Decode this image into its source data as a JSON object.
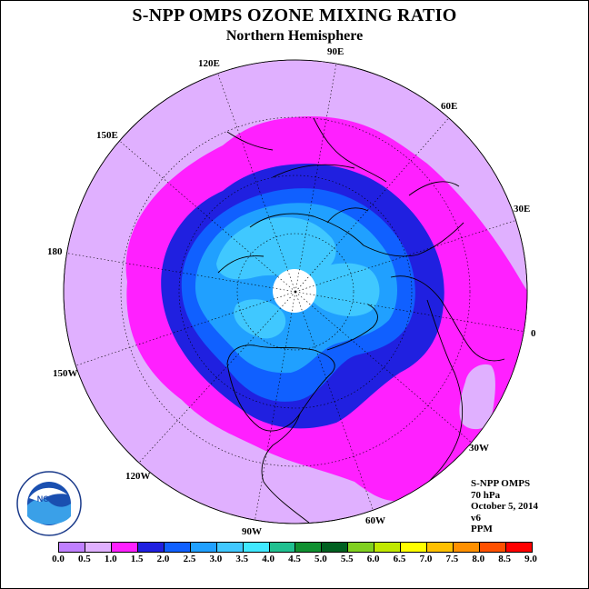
{
  "title": "S-NPP OMPS OZONE MIXING RATIO",
  "subtitle": "Northern Hemisphere",
  "longitude_labels": [
    "90E",
    "60E",
    "30E",
    "0",
    "30W",
    "60W",
    "90W",
    "120W",
    "150W",
    "180",
    "150E",
    "120E"
  ],
  "info": {
    "instrument": "S-NPP OMPS",
    "pressure": "70 hPa",
    "date": "October 5, 2014",
    "version": "v6",
    "units": "PPM"
  },
  "logo": {
    "text": "NOAA",
    "icon": "noaa-logo"
  },
  "colorbar": {
    "ticks": [
      "0.0",
      "0.5",
      "1.0",
      "1.5",
      "2.0",
      "2.5",
      "3.0",
      "3.5",
      "4.0",
      "4.5",
      "5.0",
      "5.5",
      "6.0",
      "6.5",
      "7.0",
      "7.5",
      "8.0",
      "8.5",
      "9.0"
    ],
    "colors": [
      "#c080ff",
      "#e0b0ff",
      "#ff20ff",
      "#2020e0",
      "#1060ff",
      "#20a0ff",
      "#40c8ff",
      "#40e8ff",
      "#20c090",
      "#109030",
      "#006020",
      "#80d020",
      "#c0e800",
      "#ffff00",
      "#ffc000",
      "#ff9000",
      "#ff5000",
      "#ff0000",
      "#8b5a3c"
    ]
  },
  "map_colors": {
    "band_0_5_1_0": "#e0b0ff",
    "band_1_0_1_5": "#ff20ff",
    "band_1_5_2_0": "#2020e0",
    "band_2_0_2_5": "#1060ff",
    "band_2_5_3_0": "#20a0ff",
    "band_3_0_3_5": "#40c8ff",
    "pole_missing": "#ffffff"
  }
}
